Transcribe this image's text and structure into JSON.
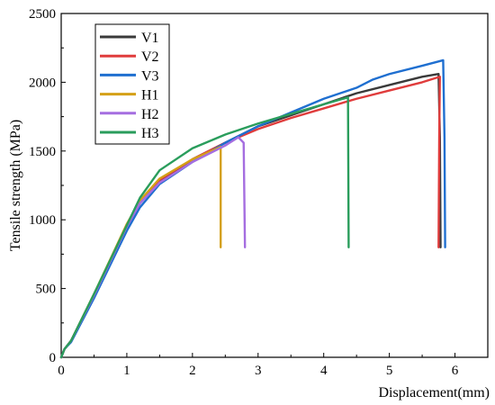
{
  "chart_data": {
    "type": "line",
    "title": "",
    "xlabel": "Displacement(mm)",
    "ylabel": "Tensile strength (MPa)",
    "xlim": [
      0,
      6.5
    ],
    "ylim": [
      0,
      2500
    ],
    "xticks": [
      0,
      1,
      2,
      3,
      4,
      5,
      6
    ],
    "yticks": [
      0,
      500,
      1000,
      1500,
      2000,
      2500
    ],
    "grid": false,
    "legend_position": "top-left",
    "series": [
      {
        "name": "V1",
        "color": "#3a3a3a",
        "points": [
          [
            0,
            0
          ],
          [
            0.05,
            60
          ],
          [
            0.15,
            120
          ],
          [
            0.5,
            450
          ],
          [
            1.0,
            950
          ],
          [
            1.2,
            1120
          ],
          [
            1.5,
            1280
          ],
          [
            2.0,
            1440
          ],
          [
            2.5,
            1560
          ],
          [
            3.0,
            1680
          ],
          [
            3.5,
            1760
          ],
          [
            4.0,
            1840
          ],
          [
            4.5,
            1920
          ],
          [
            5.0,
            1980
          ],
          [
            5.5,
            2040
          ],
          [
            5.75,
            2060
          ],
          [
            5.77,
            1600
          ],
          [
            5.78,
            800
          ]
        ]
      },
      {
        "name": "V2",
        "color": "#e03c3c",
        "points": [
          [
            0,
            0
          ],
          [
            0.05,
            60
          ],
          [
            0.15,
            120
          ],
          [
            0.5,
            450
          ],
          [
            1.0,
            960
          ],
          [
            1.2,
            1130
          ],
          [
            1.5,
            1290
          ],
          [
            2.0,
            1440
          ],
          [
            2.5,
            1560
          ],
          [
            3.0,
            1660
          ],
          [
            3.5,
            1740
          ],
          [
            4.0,
            1810
          ],
          [
            4.5,
            1880
          ],
          [
            5.0,
            1940
          ],
          [
            5.5,
            2000
          ],
          [
            5.77,
            2040
          ],
          [
            5.76,
            1600
          ],
          [
            5.75,
            800
          ]
        ]
      },
      {
        "name": "V3",
        "color": "#1f6fd0",
        "points": [
          [
            0,
            0
          ],
          [
            0.05,
            60
          ],
          [
            0.15,
            110
          ],
          [
            0.5,
            430
          ],
          [
            1.0,
            920
          ],
          [
            1.2,
            1090
          ],
          [
            1.5,
            1260
          ],
          [
            2.0,
            1420
          ],
          [
            2.5,
            1560
          ],
          [
            3.0,
            1680
          ],
          [
            3.5,
            1780
          ],
          [
            4.0,
            1880
          ],
          [
            4.5,
            1960
          ],
          [
            4.75,
            2020
          ],
          [
            5.0,
            2060
          ],
          [
            5.5,
            2120
          ],
          [
            5.82,
            2160
          ],
          [
            5.84,
            1600
          ],
          [
            5.85,
            800
          ]
        ]
      },
      {
        "name": "H1",
        "color": "#d4a017",
        "points": [
          [
            0,
            0
          ],
          [
            0.05,
            60
          ],
          [
            0.15,
            120
          ],
          [
            0.5,
            460
          ],
          [
            1.0,
            970
          ],
          [
            1.2,
            1140
          ],
          [
            1.5,
            1300
          ],
          [
            2.0,
            1440
          ],
          [
            2.43,
            1530
          ],
          [
            2.43,
            800
          ]
        ]
      },
      {
        "name": "H2",
        "color": "#a56ee0",
        "points": [
          [
            0,
            0
          ],
          [
            0.05,
            60
          ],
          [
            0.15,
            120
          ],
          [
            0.5,
            450
          ],
          [
            1.0,
            950
          ],
          [
            1.2,
            1120
          ],
          [
            1.5,
            1270
          ],
          [
            2.0,
            1420
          ],
          [
            2.5,
            1540
          ],
          [
            2.7,
            1600
          ],
          [
            2.78,
            1560
          ],
          [
            2.8,
            800
          ]
        ]
      },
      {
        "name": "H3",
        "color": "#2a9d5c",
        "points": [
          [
            0,
            0
          ],
          [
            0.05,
            60
          ],
          [
            0.15,
            120
          ],
          [
            0.5,
            460
          ],
          [
            1.0,
            960
          ],
          [
            1.2,
            1160
          ],
          [
            1.5,
            1360
          ],
          [
            2.0,
            1520
          ],
          [
            2.5,
            1620
          ],
          [
            3.0,
            1700
          ],
          [
            3.5,
            1770
          ],
          [
            4.0,
            1840
          ],
          [
            4.37,
            1890
          ],
          [
            4.38,
            800
          ]
        ]
      }
    ]
  }
}
